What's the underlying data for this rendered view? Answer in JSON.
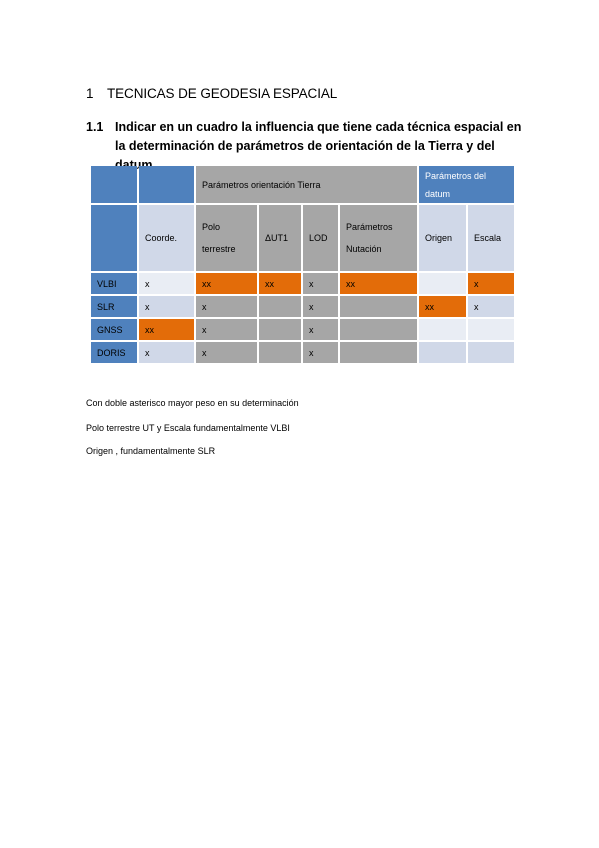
{
  "heading1": {
    "number": "1",
    "text": "TECNICAS DE GEODESIA ESPACIAL"
  },
  "heading2": {
    "number": "1.1",
    "text": "Indicar en un cuadro la influencia que tiene cada técnica espacial en la determinación de parámetros de orientación de la Tierra y del datum."
  },
  "table": {
    "group_headers": {
      "orientation": "Parámetros orientación Tierra",
      "datum_line1": "Parámetros del",
      "datum_line2": "datum"
    },
    "columns": {
      "coords": "Coorde.",
      "polo_line1": "Polo",
      "polo_line2": "terrestre",
      "dut1": "ΔUT1",
      "lod": "LOD",
      "nut_line1": "Parámetros",
      "nut_line2": "Nutación",
      "origen": "Origen",
      "escala": "Escala"
    },
    "rows": [
      {
        "label": "VLBI",
        "coords": "x",
        "polo": "xx",
        "dut1": "xx",
        "lod": "x",
        "nut": "xx",
        "origen": "",
        "escala": "x"
      },
      {
        "label": "SLR",
        "coords": "x",
        "polo": "x",
        "dut1": "",
        "lod": "x",
        "nut": "",
        "origen": "xx",
        "escala": "x"
      },
      {
        "label": "GNSS",
        "coords": "xx",
        "polo": "x",
        "dut1": "",
        "lod": "x",
        "nut": "",
        "origen": "",
        "escala": ""
      },
      {
        "label": "DORIS",
        "coords": "x",
        "polo": "x",
        "dut1": "",
        "lod": "x",
        "nut": "",
        "origen": "",
        "escala": ""
      }
    ],
    "colors": {
      "dark_blue": "#4f81bd",
      "light_blue": "#d0d8e8",
      "gray": "#a6a6a6",
      "orange": "#e36c09"
    }
  },
  "notes": [
    "Con doble asterisco mayor peso en su determinación",
    "Polo terrestre UT y Escala fundamentalmente VLBI",
    "Origen , fundamentalmente SLR"
  ]
}
